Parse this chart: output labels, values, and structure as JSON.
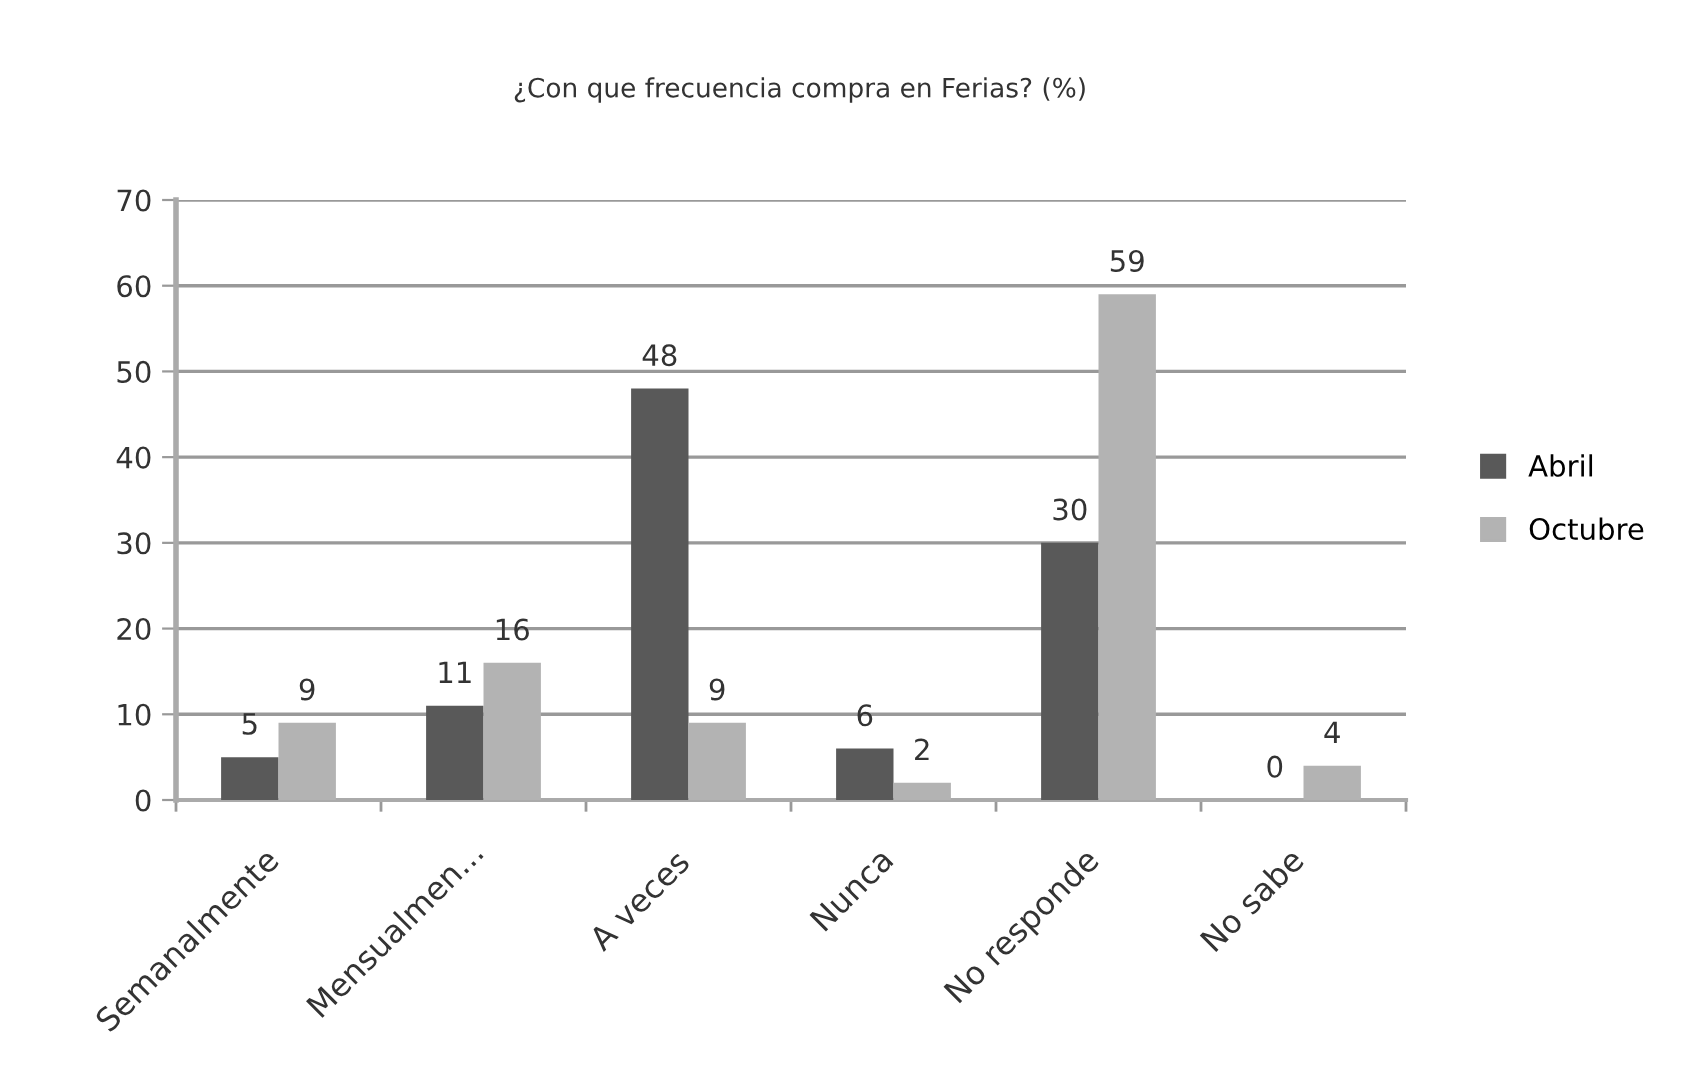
{
  "chart_data": {
    "type": "bar",
    "title": "¿Con que frecuencia compra en Ferias? (%)",
    "categories": [
      "Semanalmente",
      "Mensualmen...",
      "A veces",
      "Nunca",
      "No responde",
      "No sabe"
    ],
    "series": [
      {
        "name": "Abril",
        "color": "#595959",
        "values": [
          5,
          11,
          48,
          6,
          30,
          0
        ]
      },
      {
        "name": "Octubre",
        "color": "#b3b3b3",
        "values": [
          9,
          16,
          9,
          2,
          59,
          4
        ]
      }
    ],
    "ylim": [
      0,
      70
    ],
    "yticks": [
      0,
      10,
      20,
      30,
      40,
      50,
      60,
      70
    ],
    "grid": "y",
    "legend": "right",
    "data_labels": true
  }
}
